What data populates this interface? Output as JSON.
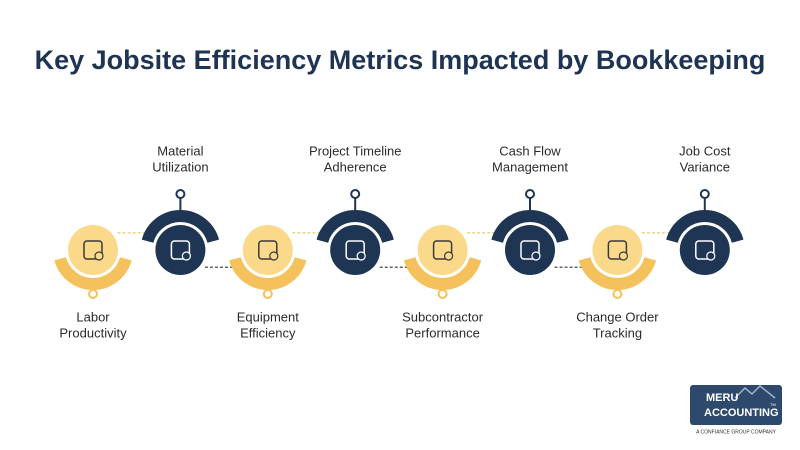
{
  "title": "Key Jobsite Efficiency Metrics Impacted by Bookkeeping",
  "nodes": [
    {
      "label": [
        "Labor",
        "Productivity"
      ]
    },
    {
      "label": [
        "Material",
        "Utilization"
      ]
    },
    {
      "label": [
        "Equipment",
        "Efficiency"
      ]
    },
    {
      "label": [
        "Project Timeline",
        "Adherence"
      ]
    },
    {
      "label": [
        "Subcontractor",
        "Performance"
      ]
    },
    {
      "label": [
        "Cash Flow",
        "Management"
      ]
    },
    {
      "label": [
        "Change Order",
        "Tracking"
      ]
    },
    {
      "label": [
        "Job Cost",
        "Variance"
      ]
    }
  ],
  "logo": {
    "name": "MERU",
    "subname": "ACCOUNTING",
    "mark": "TM",
    "tagline": "A CONFIANCE GROUP COMPANY"
  }
}
